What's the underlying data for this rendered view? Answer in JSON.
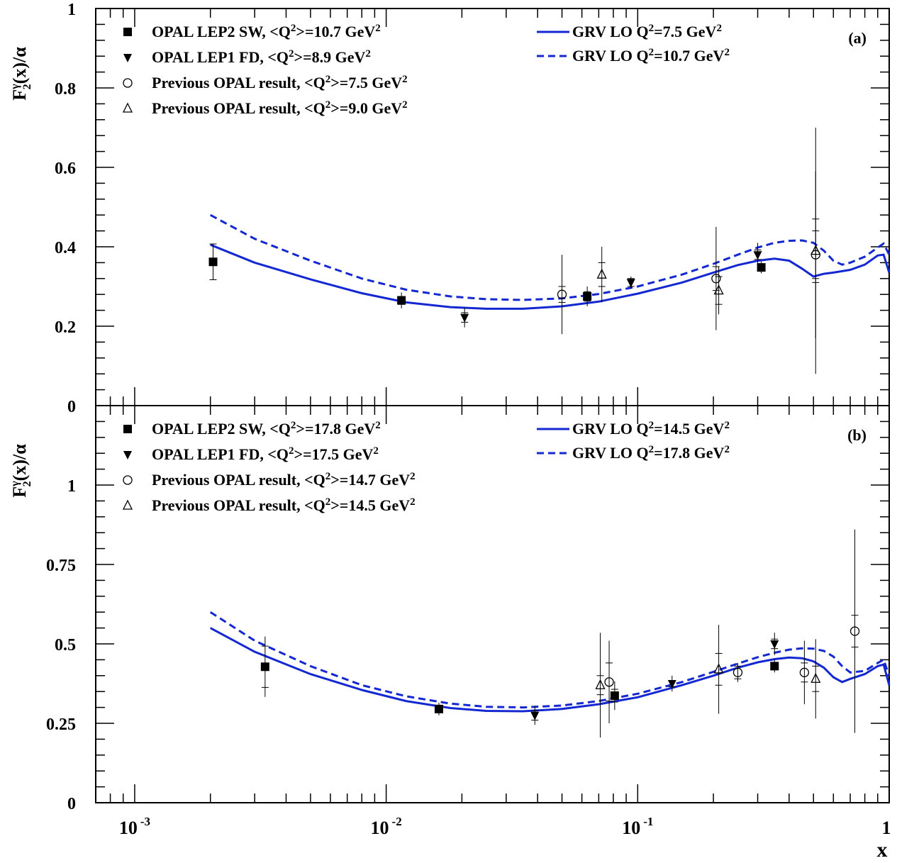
{
  "chart_data": [
    {
      "type": "scatter",
      "panel_label": "(a)",
      "ylabel": "F2γ(x)/α",
      "xlabel": "",
      "xscale": "log",
      "xlim": [
        0.0007,
        1
      ],
      "ylim": [
        0,
        1
      ],
      "yticks": [
        0,
        0.2,
        0.4,
        0.6,
        0.8,
        1
      ],
      "ytick_labels": [
        "0",
        "0.2",
        "0.4",
        "0.6",
        "0.8",
        "1"
      ],
      "legend_position": "top-left",
      "legend2_position": "top-right",
      "series": [
        {
          "name": "OPAL LEP2 SW, <Q²>=10.7 GeV²",
          "marker": "square",
          "points": [
            {
              "x": 0.00205,
              "y": 0.362,
              "err": 0.045,
              "stat": 0.045
            },
            {
              "x": 0.0115,
              "y": 0.265,
              "err": 0.02,
              "stat": 0.01
            },
            {
              "x": 0.063,
              "y": 0.275,
              "err": 0.025,
              "stat": 0.012
            },
            {
              "x": 0.31,
              "y": 0.348,
              "err": 0.015,
              "stat": 0.008
            }
          ]
        },
        {
          "name": "OPAL LEP1 FD, <Q²>=8.9 GeV²",
          "marker": "triangle-down",
          "points": [
            {
              "x": 0.0205,
              "y": 0.222,
              "err": 0.025,
              "stat": 0.012
            },
            {
              "x": 0.094,
              "y": 0.31,
              "err": 0.015,
              "stat": 0.01
            },
            {
              "x": 0.3,
              "y": 0.38,
              "err": 0.03,
              "stat": 0.012
            }
          ]
        },
        {
          "name": "Previous OPAL result, <Q²>=7.5 GeV²",
          "marker": "circle-open",
          "points": [
            {
              "x": 0.05,
              "y": 0.28,
              "err": 0.1,
              "stat": 0.02
            },
            {
              "x": 0.205,
              "y": 0.32,
              "err": 0.13,
              "stat": 0.03
            },
            {
              "x": 0.51,
              "y": 0.38,
              "err": 0.21,
              "stat": 0.06
            }
          ]
        },
        {
          "name": "Previous OPAL result, <Q²>=9.0 GeV²",
          "marker": "triangle-up-open",
          "points": [
            {
              "x": 0.072,
              "y": 0.33,
              "err": 0.07,
              "stat": 0.03
            },
            {
              "x": 0.21,
              "y": 0.29,
              "err": 0.06,
              "stat": 0.035
            },
            {
              "x": 0.51,
              "y": 0.39,
              "err": 0.31,
              "stat": 0.08
            }
          ]
        }
      ],
      "curves": [
        {
          "name": "GRV LO Q²=7.5 GeV²",
          "style": "solid",
          "color": "#1428d2",
          "x": [
            0.002,
            0.003,
            0.005,
            0.008,
            0.012,
            0.018,
            0.025,
            0.035,
            0.05,
            0.07,
            0.1,
            0.15,
            0.2,
            0.25,
            0.3,
            0.35,
            0.4,
            0.45,
            0.5,
            0.55,
            0.6,
            0.7,
            0.8,
            0.9,
            0.95,
            1.0
          ],
          "y": [
            0.405,
            0.36,
            0.318,
            0.283,
            0.26,
            0.248,
            0.244,
            0.244,
            0.25,
            0.262,
            0.282,
            0.31,
            0.335,
            0.354,
            0.365,
            0.37,
            0.365,
            0.345,
            0.325,
            0.332,
            0.335,
            0.342,
            0.355,
            0.378,
            0.38,
            0.335
          ]
        },
        {
          "name": "GRV LO Q²=10.7 GeV²",
          "style": "dashed",
          "color": "#1428d2",
          "x": [
            0.002,
            0.003,
            0.005,
            0.008,
            0.012,
            0.018,
            0.025,
            0.035,
            0.05,
            0.07,
            0.1,
            0.15,
            0.2,
            0.25,
            0.3,
            0.35,
            0.4,
            0.45,
            0.5,
            0.55,
            0.6,
            0.65,
            0.7,
            0.8,
            0.9,
            0.95,
            1.0
          ],
          "y": [
            0.48,
            0.42,
            0.365,
            0.32,
            0.292,
            0.275,
            0.268,
            0.266,
            0.27,
            0.281,
            0.3,
            0.33,
            0.357,
            0.38,
            0.398,
            0.41,
            0.415,
            0.416,
            0.41,
            0.39,
            0.365,
            0.355,
            0.36,
            0.375,
            0.398,
            0.408,
            0.38
          ]
        }
      ]
    },
    {
      "type": "scatter",
      "panel_label": "(b)",
      "ylabel": "F2γ(x)/α",
      "xlabel": "x",
      "xscale": "log",
      "xlim": [
        0.0007,
        1
      ],
      "ylim": [
        0,
        1.25
      ],
      "yticks": [
        0,
        0.25,
        0.5,
        0.75,
        1
      ],
      "ytick_labels": [
        "0",
        "0.25",
        "0.5",
        "0.75",
        "1"
      ],
      "xticks": [
        0.001,
        0.01,
        0.1,
        1
      ],
      "xtick_labels": [
        "10",
        "10",
        "10",
        "1"
      ],
      "xtick_exponents": [
        "-3",
        "-2",
        "-1",
        ""
      ],
      "legend_position": "top-left",
      "legend2_position": "top-right",
      "series": [
        {
          "name": "OPAL LEP2 SW, <Q²>=17.8 GeV²",
          "marker": "square",
          "points": [
            {
              "x": 0.0033,
              "y": 0.428,
              "err": 0.095,
              "stat": 0.065
            },
            {
              "x": 0.0162,
              "y": 0.295,
              "err": 0.02,
              "stat": 0.01
            },
            {
              "x": 0.081,
              "y": 0.337,
              "err": 0.045,
              "stat": 0.02
            },
            {
              "x": 0.35,
              "y": 0.43,
              "err": 0.02,
              "stat": 0.01
            }
          ]
        },
        {
          "name": "OPAL LEP1 FD, <Q²>=17.5 GeV²",
          "marker": "triangle-down",
          "points": [
            {
              "x": 0.039,
              "y": 0.275,
              "err": 0.03,
              "stat": 0.015
            },
            {
              "x": 0.137,
              "y": 0.375,
              "err": 0.025,
              "stat": 0.01
            },
            {
              "x": 0.35,
              "y": 0.5,
              "err": 0.035,
              "stat": 0.015
            }
          ]
        },
        {
          "name": "Previous OPAL result, <Q²>=14.7 GeV²",
          "marker": "circle-open",
          "points": [
            {
              "x": 0.077,
              "y": 0.38,
              "err": 0.13,
              "stat": 0.06
            },
            {
              "x": 0.25,
              "y": 0.41,
              "err": 0.03,
              "stat": 0.02
            },
            {
              "x": 0.46,
              "y": 0.41,
              "err": 0.1,
              "stat": 0.03
            },
            {
              "x": 0.73,
              "y": 0.54,
              "err": 0.32,
              "stat": 0.05
            }
          ]
        },
        {
          "name": "Previous OPAL result, <Q²>=14.5 GeV²",
          "marker": "triangle-up-open",
          "points": [
            {
              "x": 0.071,
              "y": 0.37,
              "err": 0.165,
              "stat": 0.03
            },
            {
              "x": 0.21,
              "y": 0.42,
              "err": 0.14,
              "stat": 0.05
            },
            {
              "x": 0.51,
              "y": 0.39,
              "err": 0.125,
              "stat": 0.04
            }
          ]
        }
      ],
      "curves": [
        {
          "name": "GRV LO Q²=14.5 GeV²",
          "style": "solid",
          "color": "#1428d2",
          "x": [
            0.002,
            0.003,
            0.005,
            0.008,
            0.012,
            0.018,
            0.025,
            0.035,
            0.05,
            0.07,
            0.1,
            0.15,
            0.2,
            0.25,
            0.3,
            0.35,
            0.4,
            0.45,
            0.5,
            0.55,
            0.6,
            0.65,
            0.7,
            0.8,
            0.9,
            0.95,
            1.0
          ],
          "y": [
            0.55,
            0.475,
            0.405,
            0.355,
            0.32,
            0.298,
            0.289,
            0.288,
            0.295,
            0.31,
            0.332,
            0.37,
            0.4,
            0.425,
            0.442,
            0.452,
            0.457,
            0.455,
            0.445,
            0.425,
            0.395,
            0.38,
            0.39,
            0.405,
            0.43,
            0.435,
            0.37
          ]
        },
        {
          "name": "GRV LO Q²=17.8 GeV²",
          "style": "dashed",
          "color": "#1428d2",
          "x": [
            0.002,
            0.003,
            0.005,
            0.008,
            0.012,
            0.018,
            0.025,
            0.035,
            0.05,
            0.07,
            0.1,
            0.15,
            0.2,
            0.25,
            0.3,
            0.35,
            0.4,
            0.45,
            0.5,
            0.55,
            0.6,
            0.65,
            0.7,
            0.8,
            0.9,
            0.95,
            1.0
          ],
          "y": [
            0.6,
            0.51,
            0.43,
            0.37,
            0.335,
            0.312,
            0.302,
            0.3,
            0.306,
            0.32,
            0.343,
            0.38,
            0.412,
            0.438,
            0.458,
            0.472,
            0.482,
            0.486,
            0.485,
            0.478,
            0.46,
            0.43,
            0.41,
            0.415,
            0.44,
            0.45,
            0.4
          ]
        }
      ]
    }
  ]
}
